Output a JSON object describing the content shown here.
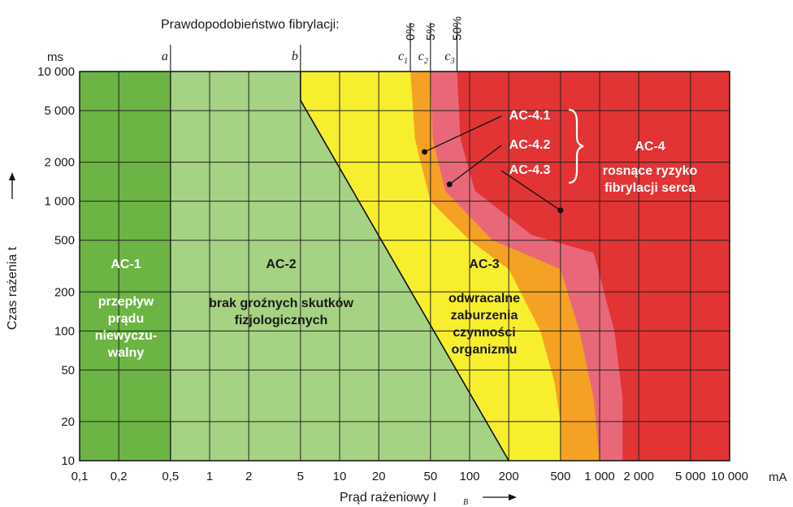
{
  "chart_data": {
    "type": "area",
    "x_scale": "log",
    "y_scale": "log",
    "xlabel": "Prąd rażeniowy I",
    "xlabel_sub": "B",
    "ylabel": "Czas rażenia t",
    "y_unit": "ms",
    "x_unit": "mA",
    "xlim": [
      0.1,
      10000
    ],
    "ylim": [
      10,
      10000
    ],
    "x_ticks": [
      {
        "v": 0.1,
        "label": "0,1"
      },
      {
        "v": 0.2,
        "label": "0,2"
      },
      {
        "v": 0.5,
        "label": "0,5"
      },
      {
        "v": 1,
        "label": "1"
      },
      {
        "v": 2,
        "label": "2"
      },
      {
        "v": 5,
        "label": "5"
      },
      {
        "v": 10,
        "label": "10"
      },
      {
        "v": 20,
        "label": "20"
      },
      {
        "v": 50,
        "label": "50"
      },
      {
        "v": 100,
        "label": "100"
      },
      {
        "v": 200,
        "label": "200"
      },
      {
        "v": 500,
        "label": "500"
      },
      {
        "v": 1000,
        "label": "1 000"
      },
      {
        "v": 2000,
        "label": "2 000"
      },
      {
        "v": 5000,
        "label": "5 000"
      },
      {
        "v": 10000,
        "label": "10 000"
      }
    ],
    "y_ticks": [
      {
        "v": 10,
        "label": "10"
      },
      {
        "v": 20,
        "label": "20"
      },
      {
        "v": 50,
        "label": "50"
      },
      {
        "v": 100,
        "label": "100"
      },
      {
        "v": 200,
        "label": "200"
      },
      {
        "v": 500,
        "label": "500"
      },
      {
        "v": 1000,
        "label": "1 000"
      },
      {
        "v": 2000,
        "label": "2 000"
      },
      {
        "v": 5000,
        "label": "5 000"
      },
      {
        "v": 10000,
        "label": "10 000"
      }
    ],
    "top_title": "Prawdopodobieństwo fibrylacji:",
    "curve_markers": [
      {
        "letter": "a",
        "sub": "",
        "x": 0.5
      },
      {
        "letter": "b",
        "sub": "",
        "x": 5
      },
      {
        "letter": "c",
        "sub": "1",
        "x": 35
      },
      {
        "letter": "c",
        "sub": "2",
        "x": 50
      },
      {
        "letter": "c",
        "sub": "3",
        "x": 80
      }
    ],
    "probability_labels": [
      {
        "label": "0%",
        "x": 35
      },
      {
        "label": "5%",
        "x": 50
      },
      {
        "label": "50%",
        "x": 80
      }
    ],
    "curves": {
      "b": [
        [
          5,
          10000
        ],
        [
          5,
          6000
        ],
        [
          200,
          10
        ]
      ],
      "c1": [
        [
          35,
          10000
        ],
        [
          38,
          3000
        ],
        [
          50,
          1000
        ],
        [
          100,
          500
        ],
        [
          200,
          300
        ],
        [
          350,
          100
        ],
        [
          450,
          40
        ],
        [
          500,
          20
        ],
        [
          500,
          10
        ]
      ],
      "c2": [
        [
          50,
          10000
        ],
        [
          52,
          3000
        ],
        [
          65,
          1200
        ],
        [
          150,
          500
        ],
        [
          500,
          300
        ],
        [
          700,
          100
        ],
        [
          900,
          30
        ],
        [
          1000,
          10
        ]
      ],
      "c3": [
        [
          80,
          10000
        ],
        [
          85,
          3000
        ],
        [
          110,
          1200
        ],
        [
          300,
          550
        ],
        [
          900,
          400
        ],
        [
          1300,
          100
        ],
        [
          1500,
          30
        ],
        [
          1500,
          10
        ]
      ]
    },
    "zones": [
      {
        "name": "AC-1",
        "color": "#6cb444",
        "lines": [
          "przepływ",
          "prądu",
          "niewyczu-",
          "walny"
        ],
        "dark": false
      },
      {
        "name": "AC-2",
        "color": "#a6d284",
        "lines": [
          "brak groźnych skutków",
          "fizjologicznych"
        ],
        "dark": true
      },
      {
        "name": "AC-3",
        "color": "#f7ee2e",
        "lines": [
          "odwracalne",
          "zaburzenia",
          "czynności",
          "organizmu"
        ],
        "dark": true
      },
      {
        "name": "AC-4",
        "color": "#e23434",
        "lines": [
          "rosnące ryzyko",
          "fibrylacji serca"
        ],
        "dark": false
      }
    ],
    "subzones": [
      {
        "name": "AC-4.1",
        "color": "#f5a123",
        "point": [
          45,
          2400
        ]
      },
      {
        "name": "AC-4.2",
        "color": "#e8687a",
        "point": [
          70,
          1350
        ]
      },
      {
        "name": "AC-4.3",
        "color": "#e23434",
        "point": [
          500,
          850
        ]
      }
    ],
    "grid": true,
    "colors": {
      "grid": "#222222",
      "axis": "#111111"
    }
  }
}
